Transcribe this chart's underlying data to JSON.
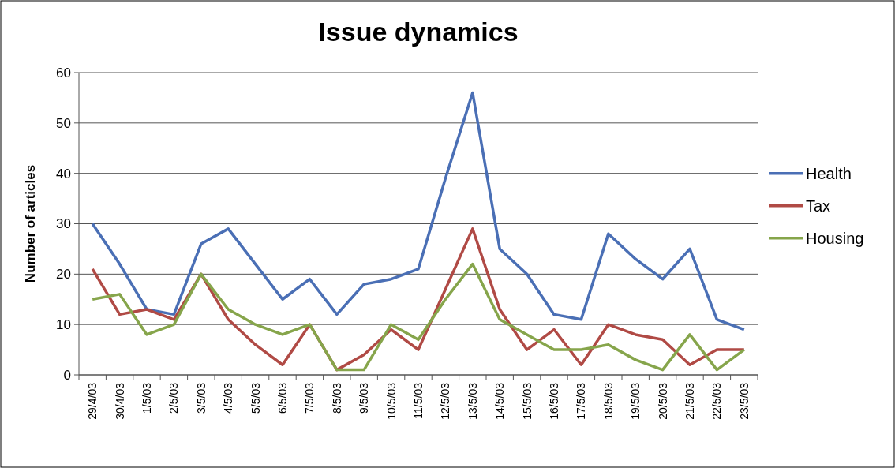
{
  "chart_data": {
    "type": "line",
    "title": "Issue dynamics",
    "ylabel": "Number of articles",
    "categories": [
      "29/4/03",
      "30/4/03",
      "1/5/03",
      "2/5/03",
      "3/5/03",
      "4/5/03",
      "5/5/03",
      "6/5/03",
      "7/5/03",
      "8/5/03",
      "9/5/03",
      "10/5/03",
      "11/5/03",
      "12/5/03",
      "13/5/03",
      "14/5/03",
      "15/5/03",
      "16/5/03",
      "17/5/03",
      "18/5/03",
      "19/5/03",
      "20/5/03",
      "21/5/03",
      "22/5/03",
      "23/5/03"
    ],
    "series": [
      {
        "name": "Health",
        "color": "#4a6fb5",
        "values": [
          30,
          22,
          13,
          12,
          26,
          29,
          22,
          15,
          19,
          12,
          18,
          19,
          21,
          39,
          56,
          25,
          20,
          12,
          11,
          28,
          23,
          19,
          25,
          11,
          9
        ]
      },
      {
        "name": "Tax",
        "color": "#b04a45",
        "values": [
          21,
          12,
          13,
          11,
          20,
          11,
          6,
          2,
          10,
          1,
          4,
          9,
          5,
          17,
          29,
          13,
          5,
          9,
          2,
          10,
          8,
          7,
          2,
          5,
          5
        ]
      },
      {
        "name": "Housing",
        "color": "#86a54b",
        "values": [
          15,
          16,
          8,
          10,
          20,
          13,
          10,
          8,
          10,
          1,
          1,
          10,
          7,
          15,
          22,
          11,
          8,
          5,
          5,
          6,
          3,
          1,
          8,
          1,
          5
        ]
      }
    ],
    "ylim": [
      0,
      60
    ],
    "yticks": [
      0,
      10,
      20,
      30,
      40,
      50,
      60
    ],
    "grid": "y",
    "legend": "right",
    "marker": "none",
    "line_style": "solid"
  }
}
